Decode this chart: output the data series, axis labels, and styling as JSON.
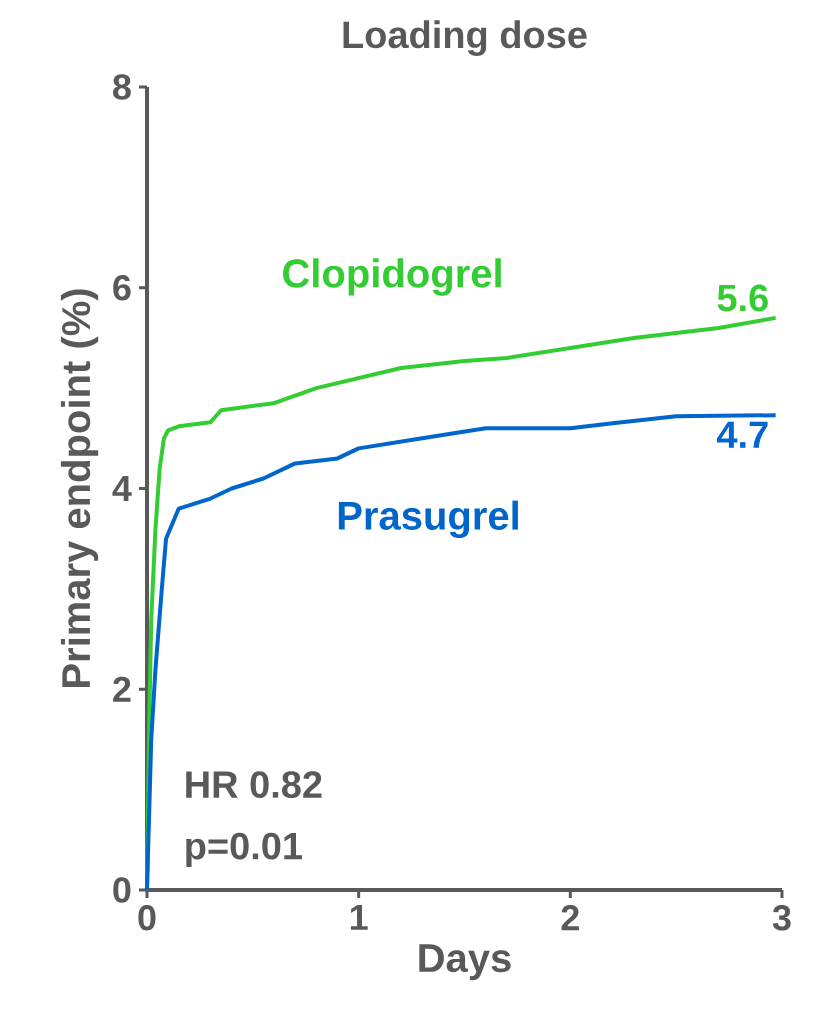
{
  "chart_data": {
    "type": "line",
    "title": "Loading dose",
    "xlabel": "Days",
    "ylabel": "Primary endpoint (%)",
    "xlim": [
      0,
      3
    ],
    "xticks": [
      0,
      1,
      2,
      3
    ],
    "ylim": [
      0,
      8
    ],
    "yticks": [
      0,
      2,
      4,
      6,
      8
    ],
    "grid": false,
    "legend": false,
    "marker": "none",
    "line_style": "solid",
    "series": [
      {
        "name": "Clopidogrel",
        "color": "#33cc33",
        "x": [
          0,
          0.01,
          0.02,
          0.04,
          0.06,
          0.08,
          0.1,
          0.15,
          0.3,
          0.35,
          0.6,
          0.8,
          1.0,
          1.2,
          1.5,
          1.7,
          2.0,
          2.3,
          2.7,
          2.97
        ],
        "values": [
          0,
          1.6,
          2.7,
          3.6,
          4.2,
          4.5,
          4.58,
          4.62,
          4.66,
          4.78,
          4.85,
          5.0,
          5.1,
          5.2,
          5.27,
          5.3,
          5.4,
          5.5,
          5.6,
          5.7
        ]
      },
      {
        "name": "Prasugrel",
        "color": "#0066cc",
        "x": [
          0,
          0.01,
          0.02,
          0.04,
          0.07,
          0.09,
          0.15,
          0.3,
          0.4,
          0.55,
          0.7,
          0.9,
          1.0,
          1.3,
          1.6,
          2.0,
          2.2,
          2.5,
          2.97
        ],
        "values": [
          0,
          0.75,
          1.5,
          2.2,
          3.0,
          3.5,
          3.8,
          3.9,
          4.0,
          4.1,
          4.25,
          4.3,
          4.4,
          4.5,
          4.6,
          4.6,
          4.65,
          4.72,
          4.73
        ]
      }
    ],
    "annotations": [
      {
        "text": "5.6",
        "x": 2.97,
        "y": 5.7
      },
      {
        "text": "4.7",
        "x": 2.97,
        "y": 4.73
      },
      "HR 0.82",
      "p=0.01"
    ]
  }
}
